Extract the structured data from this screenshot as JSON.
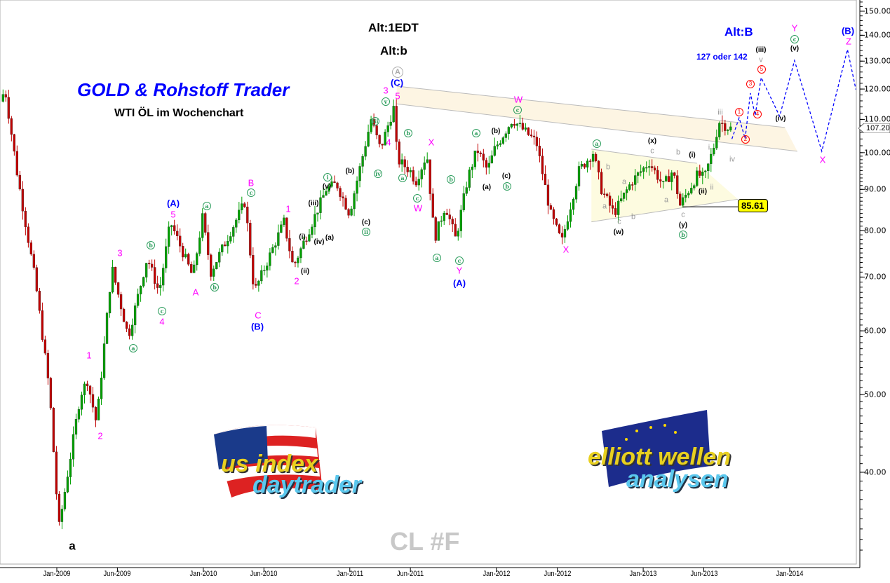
{
  "header": {
    "title": "GOLD & Rohstoff Trader",
    "subtitle": "WTI ÖL im Wochenchart",
    "alt_count_1": "Alt:1EDT",
    "alt_count_2": "Alt:b",
    "alt_count_3": "Alt:B",
    "target_note": "127 oder 142",
    "symbol": "CL #F"
  },
  "logos": {
    "left": {
      "line1": "us index",
      "line2": "daytrader"
    },
    "right": {
      "line1": "elliott wellen",
      "line2": "analysen"
    }
  },
  "colors": {
    "up": "#00a000",
    "down": "#c00000",
    "projection": "#0000ff",
    "channel_fill": "#fdf3dc",
    "triangle_fill": "#fdfbe0",
    "wave_magenta": "#ff00ff",
    "wave_blue": "#0000ff",
    "wave_green": "#2e9e5e",
    "wave_red": "#ff0000"
  },
  "chart_data": {
    "type": "candlestick",
    "period": "weekly",
    "y_scale": "log",
    "ylim": [
      30,
      155
    ],
    "yticks": [
      "150.00",
      "140.00",
      "130.00",
      "120.00",
      "110.00",
      "100.00",
      "90.00",
      "80.00",
      "70.00",
      "60.00",
      "50.00",
      "40.00"
    ],
    "xticks": [
      "Jan-2009",
      "Jun-2009",
      "Jan-2010",
      "Jun-2010",
      "Jan-2011",
      "Jun-2011",
      "Jan-2012",
      "Jun-2012",
      "Jan-2013",
      "Jun-2013",
      "Jan-2014"
    ],
    "last_price": "107.20",
    "marked_low": "85.61",
    "price_path": [
      [
        "2008-08-20",
        115.8
      ],
      [
        "2008-09-01",
        120
      ],
      [
        "2008-10-03",
        93
      ],
      [
        "2008-11-16",
        69
      ],
      [
        "2008-12-21",
        50.4
      ],
      [
        "2009-01-13",
        34
      ],
      [
        "2009-03-08",
        50
      ],
      [
        "2009-03-25",
        52
      ],
      [
        "2009-04-17",
        46
      ],
      [
        "2009-05-25",
        72
      ],
      [
        "2009-07-05",
        59
      ],
      [
        "2009-08-21",
        74
      ],
      [
        "2009-09-20",
        67
      ],
      [
        "2009-10-18",
        82
      ],
      [
        "2009-12-13",
        70
      ],
      [
        "2010-01-06",
        83
      ],
      [
        "2010-01-27",
        71
      ],
      [
        "2010-04-22",
        86.9
      ],
      [
        "2010-05-15",
        67
      ],
      [
        "2010-07-28",
        82
      ],
      [
        "2010-08-20",
        72
      ],
      [
        "2010-11-10",
        90
      ],
      [
        "2010-12-06",
        91.5
      ],
      [
        "2011-01-07",
        84
      ],
      [
        "2011-03-02",
        110
      ],
      [
        "2011-03-25",
        101
      ],
      [
        "2011-04-28",
        114
      ],
      [
        "2011-05-06",
        98
      ],
      [
        "2011-06-07",
        95
      ],
      [
        "2011-06-21",
        92
      ],
      [
        "2011-07-19",
        99.6
      ],
      [
        "2011-08-07",
        78
      ],
      [
        "2011-09-03",
        86
      ],
      [
        "2011-09-29",
        78
      ],
      [
        "2011-10-29",
        93
      ],
      [
        "2011-11-21",
        101
      ],
      [
        "2011-12-17",
        95
      ],
      [
        "2012-01-04",
        101
      ],
      [
        "2012-02-17",
        110
      ],
      [
        "2012-04-17",
        103
      ],
      [
        "2012-05-22",
        84
      ],
      [
        "2012-06-19",
        77.3
      ],
      [
        "2012-08-01",
        95
      ],
      [
        "2012-09-05",
        100
      ],
      [
        "2012-09-26",
        90
      ],
      [
        "2012-10-27",
        84
      ],
      [
        "2012-12-10",
        92
      ],
      [
        "2013-01-23",
        97.3
      ],
      [
        "2013-02-27",
        91
      ],
      [
        "2013-03-23",
        95
      ],
      [
        "2013-04-10",
        86
      ],
      [
        "2013-05-24",
        94
      ],
      [
        "2013-06-10",
        93
      ],
      [
        "2013-07-06",
        103
      ],
      [
        "2013-07-15",
        109.5
      ],
      [
        "2013-08-10",
        107.2
      ]
    ],
    "projection": [
      [
        "2013-08-10",
        104
      ],
      [
        "2013-08-28",
        110.5
      ],
      [
        "2013-09-12",
        104.1
      ],
      [
        "2013-09-25",
        118.6
      ],
      [
        "2013-10-07",
        111.3
      ],
      [
        "2013-10-22",
        124
      ],
      [
        "2013-12-07",
        111
      ],
      [
        "2014-01-13",
        130.2
      ],
      [
        "2014-03-22",
        100.4
      ],
      [
        "2014-05-25",
        134.4
      ],
      [
        "2014-06-15",
        119.8
      ]
    ],
    "channel": {
      "upper": [
        [
          "2011-04-28",
          121
        ],
        [
          "2013-12-20",
          107.5
        ]
      ],
      "lower": [
        [
          "2011-04-28",
          115
        ],
        [
          "2014-01-20",
          100.4
        ]
      ]
    },
    "triangle": {
      "upper": [
        [
          "2012-08-25",
          101
        ],
        [
          "2013-05-15",
          97
        ]
      ],
      "lower": [
        [
          "2012-08-25",
          82
        ],
        [
          "2013-08-25",
          87.5
        ]
      ]
    },
    "wave_labels": [
      {
        "t": "1",
        "c": "m"
      },
      {
        "t": "2",
        "c": "m"
      },
      {
        "t": "3",
        "c": "m"
      },
      {
        "t": "4",
        "c": "m"
      },
      {
        "t": "5",
        "c": "m"
      },
      {
        "t": "A",
        "c": "m"
      },
      {
        "t": "B",
        "c": "m"
      },
      {
        "t": "C",
        "c": "m"
      },
      {
        "t": "1",
        "c": "m"
      },
      {
        "t": "2",
        "c": "m"
      },
      {
        "t": "3",
        "c": "m"
      },
      {
        "t": "5",
        "c": "m"
      },
      {
        "t": "4",
        "c": "m"
      },
      {
        "t": "W",
        "c": "m"
      },
      {
        "t": "X",
        "c": "m"
      },
      {
        "t": "Y",
        "c": "m"
      },
      {
        "t": "W",
        "c": "m"
      },
      {
        "t": "X",
        "c": "m"
      },
      {
        "t": "X",
        "c": "m"
      },
      {
        "t": "Y",
        "c": "m"
      },
      {
        "t": "Z",
        "c": "m"
      },
      {
        "t": "(A)",
        "c": "b"
      },
      {
        "t": "(B)",
        "c": "b"
      },
      {
        "t": "(C)",
        "c": "b"
      },
      {
        "t": "(A)",
        "c": "b"
      },
      {
        "t": "(B)",
        "c": "b"
      },
      {
        "t": "a",
        "c": "g"
      },
      {
        "t": "b",
        "c": "g"
      },
      {
        "t": "c",
        "c": "g"
      },
      {
        "t": "a",
        "c": "g"
      },
      {
        "t": "b",
        "c": "g"
      },
      {
        "t": "c",
        "c": "g"
      },
      {
        "t": "i",
        "c": "g"
      },
      {
        "t": "ii",
        "c": "g"
      },
      {
        "t": "iii",
        "c": "g"
      },
      {
        "t": "iv",
        "c": "g"
      },
      {
        "t": "v",
        "c": "g"
      },
      {
        "t": "a",
        "c": "g"
      },
      {
        "t": "b",
        "c": "g"
      },
      {
        "t": "c",
        "c": "g"
      },
      {
        "t": "a",
        "c": "g"
      },
      {
        "t": "b",
        "c": "g"
      },
      {
        "t": "c",
        "c": "g"
      },
      {
        "t": "a",
        "c": "g"
      },
      {
        "t": "b",
        "c": "g"
      },
      {
        "t": "c",
        "c": "g"
      },
      {
        "t": "a",
        "c": "g"
      },
      {
        "t": "b",
        "c": "g"
      },
      {
        "t": "c",
        "c": "g"
      },
      {
        "t": "A",
        "c": "ga"
      },
      {
        "t": "(v)",
        "c": "k"
      },
      {
        "t": "(b)",
        "c": "k"
      },
      {
        "t": "(iii)",
        "c": "k"
      },
      {
        "t": "(i)",
        "c": "k"
      },
      {
        "t": "(iv)",
        "c": "k"
      },
      {
        "t": "(a)",
        "c": "k"
      },
      {
        "t": "(ii)",
        "c": "k"
      },
      {
        "t": "(c)",
        "c": "k"
      },
      {
        "t": "(b)",
        "c": "k"
      },
      {
        "t": "(a)",
        "c": "k"
      },
      {
        "t": "(c)",
        "c": "k"
      },
      {
        "t": "(x)",
        "c": "k"
      },
      {
        "t": "(w)",
        "c": "k"
      },
      {
        "t": "(y)",
        "c": "k"
      },
      {
        "t": "(i)",
        "c": "k"
      },
      {
        "t": "(ii)",
        "c": "k"
      },
      {
        "t": "(iii)",
        "c": "k"
      },
      {
        "t": "(v)",
        "c": "k"
      },
      {
        "t": "(iv)",
        "c": "k"
      },
      {
        "t": "a",
        "c": "k big"
      },
      {
        "t": "b",
        "c": "s"
      },
      {
        "t": "a",
        "c": "s"
      },
      {
        "t": "a",
        "c": "s"
      },
      {
        "t": "c",
        "c": "s"
      },
      {
        "t": "b",
        "c": "s"
      },
      {
        "t": "c",
        "c": "s"
      },
      {
        "t": "b",
        "c": "s"
      },
      {
        "t": "a",
        "c": "s"
      },
      {
        "t": "c",
        "c": "s"
      },
      {
        "t": "i",
        "c": "s"
      },
      {
        "t": "ii",
        "c": "s"
      },
      {
        "t": "iii",
        "c": "s"
      },
      {
        "t": "iv",
        "c": "s"
      },
      {
        "t": "v",
        "c": "s"
      },
      {
        "t": "1",
        "c": "r"
      },
      {
        "t": "2",
        "c": "r"
      },
      {
        "t": "3",
        "c": "r"
      },
      {
        "t": "4",
        "c": "r"
      },
      {
        "t": "5",
        "c": "r"
      }
    ]
  }
}
